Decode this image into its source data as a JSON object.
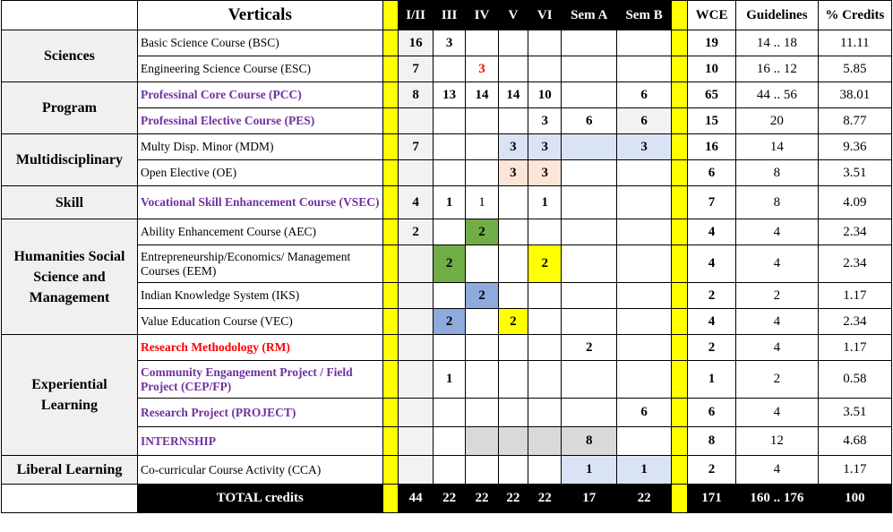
{
  "header": {
    "verticals": "Verticals",
    "sem": [
      "I/II",
      "III",
      "IV",
      "V",
      "VI",
      "Sem A",
      "Sem B"
    ],
    "wce": "WCE",
    "guidelines": "Guidelines",
    "credits": "% Credits"
  },
  "verticals": {
    "sciences": "Sciences",
    "program": "Program",
    "multi": "Multidisciplinary",
    "skill": "Skill",
    "hum": "Humanities Social Science and Management",
    "exp": "Experiential Learning",
    "lib": "Liberal Learning"
  },
  "rows": [
    {
      "course": "Basic Science Course (BSC)",
      "cells": [
        "16",
        "3",
        "",
        "",
        "",
        "",
        ""
      ],
      "wce": "19",
      "guide": "14 .. 18",
      "pct": "11.11"
    },
    {
      "course": "Engineering Science Course (ESC)",
      "cells": [
        "7",
        "",
        "3",
        "",
        "",
        "",
        ""
      ],
      "wce": "10",
      "guide": "16 .. 12",
      "pct": "5.85"
    },
    {
      "course": "Professinal Core Course (PCC)",
      "cells": [
        "8",
        "13",
        "14",
        "14",
        "10",
        "",
        "6"
      ],
      "wce": "65",
      "guide": "44 .. 56",
      "pct": "38.01"
    },
    {
      "course": "Professinal Elective Course (PES)",
      "cells": [
        "",
        "",
        "",
        "",
        "3",
        "6",
        "6"
      ],
      "wce": "15",
      "guide": "20",
      "pct": "8.77"
    },
    {
      "course": "Multy Disp. Minor (MDM)",
      "cells": [
        "7",
        "",
        "",
        "3",
        "3",
        "",
        "3"
      ],
      "wce": "16",
      "guide": "14",
      "pct": "9.36"
    },
    {
      "course": "Open Elective (OE)",
      "cells": [
        "",
        "",
        "",
        "3",
        "3",
        "",
        ""
      ],
      "wce": "6",
      "guide": "8",
      "pct": "3.51"
    },
    {
      "course": "Vocational Skill Enhancement Course (VSEC)",
      "cells": [
        "4",
        "1",
        "1",
        "",
        "1",
        "",
        ""
      ],
      "wce": "7",
      "guide": "8",
      "pct": "4.09"
    },
    {
      "course": "Ability Enhancement Course (AEC)",
      "cells": [
        "2",
        "",
        "2",
        "",
        "",
        "",
        ""
      ],
      "wce": "4",
      "guide": "4",
      "pct": "2.34"
    },
    {
      "course": "Entrepreneurship/Economics/ Management Courses (EEM)",
      "cells": [
        "",
        "2",
        "",
        "",
        "2",
        "",
        ""
      ],
      "wce": "4",
      "guide": "4",
      "pct": "2.34"
    },
    {
      "course": "Indian Knowledge System (IKS)",
      "cells": [
        "",
        "",
        "2",
        "",
        "",
        "",
        ""
      ],
      "wce": "2",
      "guide": "2",
      "pct": "1.17"
    },
    {
      "course": "Value Education Course (VEC)",
      "cells": [
        "",
        "2",
        "",
        "2",
        "",
        "",
        ""
      ],
      "wce": "4",
      "guide": "4",
      "pct": "2.34"
    },
    {
      "course": "Research Methodology (RM)",
      "cells": [
        "",
        "",
        "",
        "",
        "",
        "2",
        ""
      ],
      "wce": "2",
      "guide": "4",
      "pct": "1.17"
    },
    {
      "course": "Community Engangement Project / Field Project (CEP/FP)",
      "cells": [
        "",
        "1",
        "",
        "",
        "",
        "",
        ""
      ],
      "wce": "1",
      "guide": "2",
      "pct": "0.58"
    },
    {
      "course": "Research Project (PROJECT)",
      "cells": [
        "",
        "",
        "",
        "",
        "",
        "",
        "6"
      ],
      "wce": "6",
      "guide": "4",
      "pct": "3.51"
    },
    {
      "course": "INTERNSHIP",
      "cells": [
        "",
        "",
        "",
        "",
        "",
        "8",
        ""
      ],
      "wce": "8",
      "guide": "12",
      "pct": "4.68"
    },
    {
      "course": "Co-curricular Course Activity (CCA)",
      "cells": [
        "",
        "",
        "",
        "",
        "",
        "1",
        "1"
      ],
      "wce": "2",
      "guide": "4",
      "pct": "1.17"
    }
  ],
  "total": {
    "label": "TOTAL credits",
    "cells": [
      "44",
      "22",
      "22",
      "22",
      "22",
      "17",
      "22"
    ],
    "wce": "171",
    "guide": "160 .. 176",
    "pct": "100"
  },
  "colors": {
    "purple_text": "#7030a0",
    "red_text": "#ff0000",
    "yellow": "#ffff00",
    "green": "#70ad47",
    "blue": "#8faadc",
    "light_blue": "#dae3f3",
    "peach": "#fbe5d6"
  }
}
